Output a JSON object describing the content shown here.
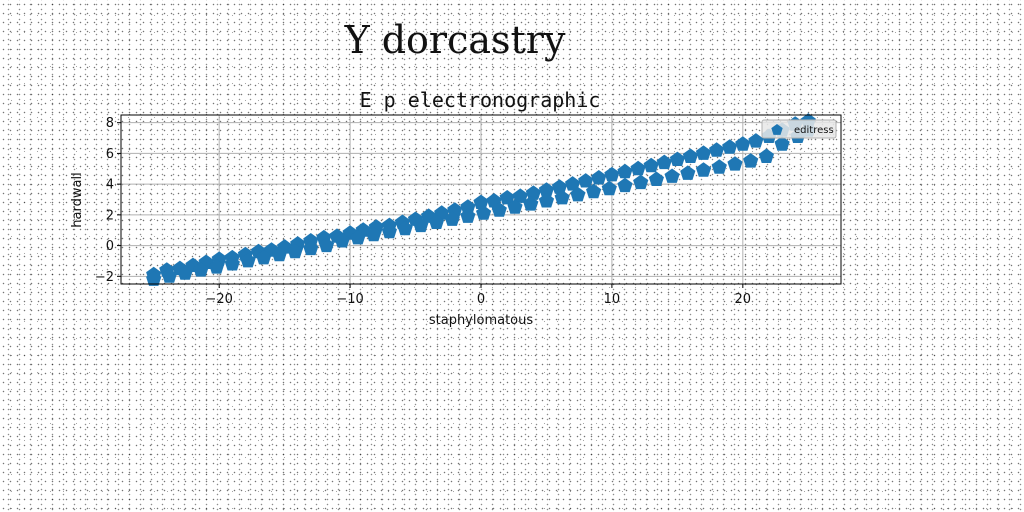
{
  "chart_data": {
    "type": "scatter",
    "suptitle": "Y dorcastry",
    "title": "E p electronographic",
    "xlabel": "staphylomatous",
    "ylabel": "hardwall",
    "xlim": [
      -27.5,
      27.5
    ],
    "ylim": [
      -2.5,
      8.5
    ],
    "xticks": [
      -20,
      -10,
      0,
      10,
      20
    ],
    "yticks": [
      -2,
      0,
      2,
      4,
      6,
      8
    ],
    "grid": true,
    "legend_position": "top-right",
    "marker": "pentagon",
    "series": [
      {
        "name": "editress",
        "color": "#1f77b4",
        "x": [
          -25.0,
          -24.0,
          -23.0,
          -22.0,
          -21.0,
          -20.0,
          -19.0,
          -18.0,
          -17.0,
          -16.0,
          -15.0,
          -14.0,
          -13.0,
          -12.0,
          -11.0,
          -10.0,
          -9.0,
          -8.0,
          -7.0,
          -6.0,
          -5.0,
          -4.0,
          -3.0,
          -2.0,
          -1.0,
          0.0,
          1.0,
          2.0,
          3.0,
          4.0,
          5.0,
          6.0,
          7.0,
          8.0,
          9.0,
          10.0,
          11.0,
          12.0,
          13.0,
          14.0,
          15.0,
          16.0,
          17.0,
          18.0,
          19.0,
          20.0,
          21.0,
          22.0,
          23.0,
          24.0,
          25.0,
          -25.0,
          -23.8,
          -22.6,
          -21.4,
          -20.2,
          -19.0,
          -17.8,
          -16.6,
          -15.4,
          -14.2,
          -13.0,
          -11.8,
          -10.6,
          -9.4,
          -8.2,
          -7.0,
          -5.8,
          -4.6,
          -3.4,
          -2.2,
          -1.0,
          0.2,
          1.4,
          2.6,
          3.8,
          5.0,
          6.2,
          7.4,
          8.6,
          9.8,
          11.0,
          12.2,
          13.4,
          14.6,
          15.8,
          17.0,
          18.2,
          19.4,
          20.6,
          21.8,
          23.0,
          24.2,
          25.0
        ],
        "y": [
          -1.9,
          -1.6,
          -1.5,
          -1.3,
          -1.1,
          -0.9,
          -0.8,
          -0.6,
          -0.4,
          -0.3,
          -0.1,
          0.1,
          0.3,
          0.5,
          0.6,
          0.8,
          1.0,
          1.2,
          1.3,
          1.5,
          1.7,
          1.9,
          2.1,
          2.3,
          2.5,
          2.8,
          2.9,
          3.1,
          3.2,
          3.4,
          3.6,
          3.8,
          4.0,
          4.2,
          4.4,
          4.6,
          4.8,
          5.0,
          5.2,
          5.4,
          5.6,
          5.8,
          6.0,
          6.2,
          6.4,
          6.6,
          6.8,
          7.1,
          7.5,
          7.9,
          8.1,
          -2.2,
          -2.0,
          -1.8,
          -1.6,
          -1.4,
          -1.2,
          -1.0,
          -0.8,
          -0.6,
          -0.4,
          -0.2,
          0.0,
          0.3,
          0.5,
          0.7,
          0.9,
          1.1,
          1.3,
          1.5,
          1.7,
          1.9,
          2.1,
          2.3,
          2.5,
          2.7,
          2.9,
          3.1,
          3.3,
          3.5,
          3.7,
          3.9,
          4.1,
          4.3,
          4.5,
          4.7,
          4.9,
          5.1,
          5.3,
          5.5,
          5.8,
          6.6,
          7.1,
          7.5
        ]
      }
    ]
  }
}
